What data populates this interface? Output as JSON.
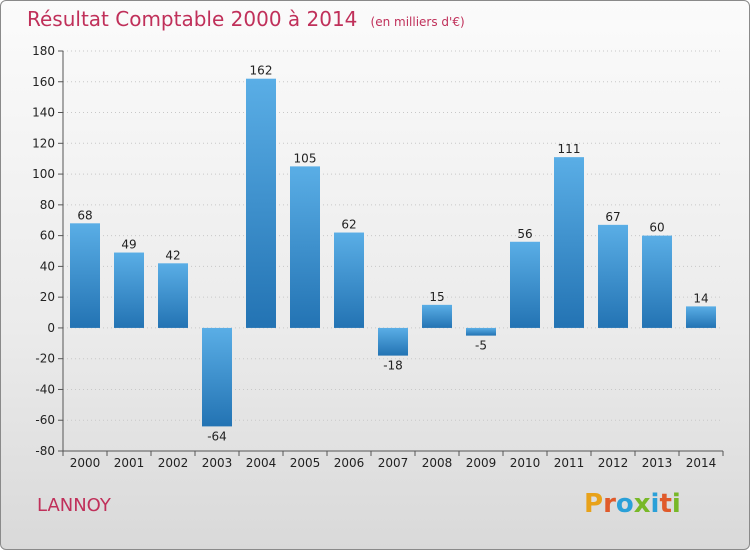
{
  "title": "Résultat Comptable 2000 à 2014",
  "subtitle": "(en milliers d'€)",
  "commune": "LANNOY",
  "brand": {
    "text": "Proxiti",
    "letters": [
      "P",
      "r",
      "o",
      "x",
      "i",
      "t",
      "i"
    ],
    "colors": [
      "#e8a21a",
      "#e05a2a",
      "#2aa0d8",
      "#78b828",
      "#2aa0d8",
      "#e05a2a",
      "#78b828"
    ]
  },
  "colors": {
    "bar_top": "#5aaee6",
    "bar_bottom": "#2373b3",
    "title": "#c0305a"
  },
  "chart_data": {
    "type": "bar",
    "title": "Résultat Comptable 2000 à 2014",
    "xlabel": "",
    "ylabel": "",
    "categories": [
      "2000",
      "2001",
      "2002",
      "2003",
      "2004",
      "2005",
      "2006",
      "2007",
      "2008",
      "2009",
      "2010",
      "2011",
      "2012",
      "2013",
      "2014"
    ],
    "values": [
      68,
      49,
      42,
      -64,
      162,
      105,
      62,
      -18,
      15,
      -5,
      56,
      111,
      67,
      60,
      14
    ],
    "ylim": [
      -80,
      180
    ],
    "yticks": [
      -80,
      -60,
      -40,
      -20,
      0,
      20,
      40,
      60,
      80,
      100,
      120,
      140,
      160,
      180
    ],
    "grid": true
  }
}
